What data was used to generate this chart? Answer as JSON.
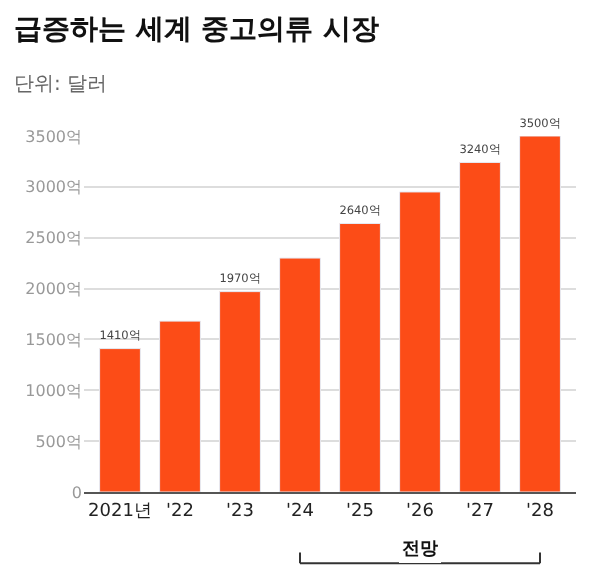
{
  "chart_data": {
    "type": "bar",
    "title": "급증하는 세계 중고의류 시장",
    "subtitle": "단위: 달러",
    "categories": [
      "2021년",
      "'22",
      "'23",
      "'24",
      "'25",
      "'26",
      "'27",
      "'28"
    ],
    "values": [
      1410,
      1680,
      1970,
      2300,
      2640,
      2950,
      3240,
      3500
    ],
    "value_labels": [
      "1410억",
      null,
      "1970억",
      null,
      "2640억",
      null,
      "3240억",
      "3500억"
    ],
    "color": "#fc4c17",
    "ylim": [
      0,
      3500
    ],
    "yticks": [
      0,
      {
        "value": 500,
        "label": "500억"
      },
      {
        "value": 1000,
        "label": "1000억"
      },
      {
        "value": 1500,
        "label": "1500억"
      },
      {
        "value": 2000,
        "label": "2000억"
      },
      {
        "value": 2500,
        "label": "2500억"
      },
      {
        "value": 3000,
        "label": "3000억"
      },
      {
        "value": 3500,
        "label": "3500억"
      }
    ],
    "grid": "y",
    "annotations": [
      "전망"
    ]
  }
}
